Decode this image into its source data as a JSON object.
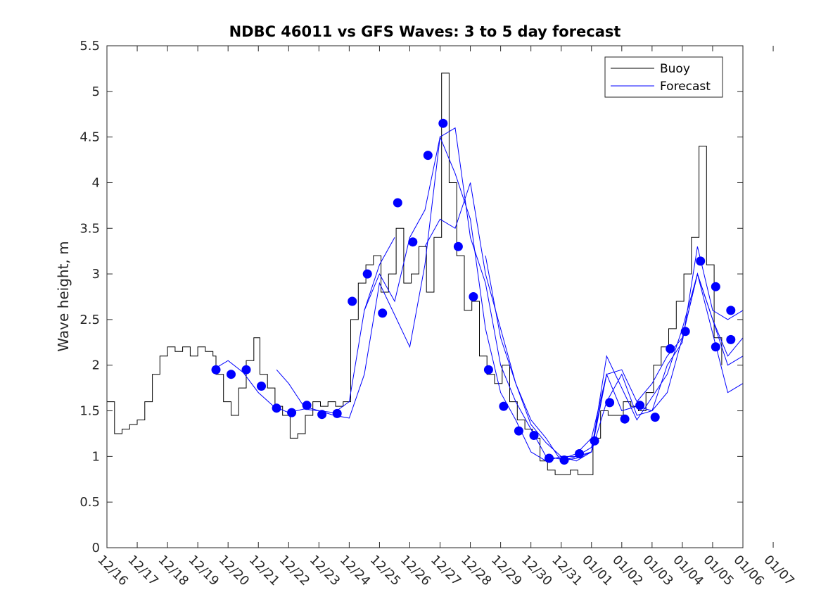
{
  "chart_data": {
    "type": "line",
    "title": "NDBC 46011 vs GFS Waves: 3 to 5 day forecast",
    "xlabel": "",
    "ylabel": "Wave height, m",
    "x_tick_labels": [
      "12/16",
      "12/17",
      "12/18",
      "12/19",
      "12/20",
      "12/21",
      "12/22",
      "12/23",
      "12/24",
      "12/25",
      "12/26",
      "12/27",
      "12/28",
      "12/29",
      "12/30",
      "12/31",
      "01/01",
      "01/02",
      "01/03",
      "01/04",
      "01/05",
      "01/06",
      "01/07"
    ],
    "xlim_days": [
      0,
      21
    ],
    "y_tick_labels": [
      "0",
      "0.5",
      "1",
      "1.5",
      "2",
      "2.5",
      "3",
      "3.5",
      "4",
      "4.5",
      "5",
      "5.5"
    ],
    "ylim": [
      0,
      5.5
    ],
    "grid": false,
    "legend": {
      "position": "top-right",
      "entries": [
        "Buoy",
        "Forecast"
      ]
    },
    "colors": {
      "buoy": "#000000",
      "forecast": "#0000ff",
      "markers": "#0000ff",
      "axes": "#262626"
    },
    "buoy": {
      "name": "Buoy",
      "x": [
        0.0,
        0.25,
        0.5,
        0.75,
        1.0,
        1.25,
        1.5,
        1.75,
        2.0,
        2.25,
        2.5,
        2.75,
        3.0,
        3.25,
        3.5,
        3.6,
        3.85,
        4.1,
        4.35,
        4.6,
        4.85,
        5.05,
        5.3,
        5.55,
        5.8,
        6.05,
        6.3,
        6.55,
        6.8,
        7.05,
        7.3,
        7.55,
        7.8,
        8.05,
        8.3,
        8.55,
        8.8,
        9.05,
        9.3,
        9.55,
        9.8,
        10.05,
        10.3,
        10.55,
        10.8,
        11.05,
        11.3,
        11.55,
        11.8,
        12.05,
        12.3,
        12.55,
        12.8,
        13.05,
        13.3,
        13.55,
        13.8,
        14.05,
        14.3,
        14.55,
        14.8,
        15.05,
        15.3,
        15.55,
        15.8,
        16.05,
        16.3,
        16.55,
        16.8,
        17.05,
        17.3,
        17.55,
        17.8,
        18.05,
        18.3,
        18.55,
        18.8,
        19.05,
        19.3,
        19.55,
        19.8,
        20.05,
        20.3
      ],
      "values": [
        1.6,
        1.25,
        1.3,
        1.35,
        1.4,
        1.6,
        1.9,
        2.1,
        2.2,
        2.15,
        2.2,
        2.1,
        2.2,
        2.15,
        2.1,
        1.9,
        1.6,
        1.45,
        1.75,
        2.05,
        2.3,
        1.9,
        1.75,
        1.55,
        1.45,
        1.2,
        1.25,
        1.45,
        1.6,
        1.55,
        1.6,
        1.55,
        1.6,
        2.5,
        2.9,
        3.1,
        3.2,
        2.8,
        3.0,
        3.5,
        2.9,
        3.0,
        3.3,
        2.8,
        3.4,
        5.2,
        4.0,
        3.2,
        2.6,
        2.7,
        2.1,
        1.9,
        1.8,
        2.0,
        1.6,
        1.4,
        1.3,
        1.2,
        0.95,
        0.85,
        0.8,
        0.8,
        0.85,
        0.8,
        0.8,
        1.2,
        1.5,
        1.45,
        1.45,
        1.6,
        1.55,
        1.5,
        1.7,
        2.0,
        2.2,
        2.4,
        2.7,
        3.0,
        3.4,
        4.4,
        3.1,
        2.3,
        2.0
      ]
    },
    "forecast": {
      "name": "Forecast",
      "series": [
        {
          "x": [
            3.6,
            4.0,
            4.5,
            5.0,
            5.5,
            6.0,
            6.5,
            7.0,
            7.5,
            8.0,
            8.5,
            9.0,
            9.5
          ],
          "values": [
            1.97,
            2.05,
            1.92,
            1.7,
            1.55,
            1.48,
            1.52,
            1.5,
            1.48,
            1.6,
            2.6,
            3.1,
            3.4
          ]
        },
        {
          "x": [
            5.6,
            6.0,
            6.5,
            7.0,
            7.5,
            8.0,
            8.5,
            9.0,
            9.5,
            10.0,
            10.5,
            11.0,
            11.5,
            12.0,
            12.5,
            13.0,
            13.5,
            14.0,
            14.5,
            15.0,
            15.5,
            16.0,
            16.5
          ],
          "values": [
            1.95,
            1.8,
            1.55,
            1.5,
            1.45,
            1.42,
            1.9,
            2.9,
            2.55,
            2.2,
            3.1,
            4.5,
            4.1,
            3.6,
            2.4,
            1.7,
            1.4,
            1.05,
            0.95,
            1.0,
            1.0,
            1.05,
            1.9
          ]
        },
        {
          "x": [
            8.5,
            9.0,
            9.5,
            10.0,
            10.5,
            11.0,
            11.5,
            12.0,
            12.5,
            13.0,
            13.5,
            14.0,
            14.5,
            15.0,
            15.5,
            16.0,
            16.5,
            17.0,
            17.5,
            18.0,
            18.5,
            19.0,
            19.5,
            20.0,
            20.5,
            21.0
          ],
          "values": [
            2.6,
            3.0,
            2.7,
            3.4,
            3.7,
            4.5,
            4.6,
            3.4,
            2.9,
            2.0,
            1.6,
            1.3,
            1.0,
            0.97,
            1.03,
            1.2,
            1.9,
            1.95,
            1.6,
            1.8,
            2.1,
            2.3,
            3.0,
            2.5,
            2.0,
            2.1
          ]
        },
        {
          "x": [
            10.5,
            11.0,
            11.5,
            12.0,
            12.5,
            13.0,
            13.5,
            14.0,
            14.5,
            15.0,
            15.5,
            16.0,
            16.5,
            17.0,
            17.5,
            18.0,
            18.5,
            19.0,
            19.5,
            20.0,
            20.5,
            21.0
          ],
          "values": [
            3.3,
            3.6,
            3.5,
            4.0,
            3.0,
            2.4,
            1.8,
            1.4,
            1.2,
            0.95,
            0.98,
            1.05,
            1.6,
            1.9,
            1.45,
            1.5,
            2.0,
            2.25,
            3.3,
            2.6,
            2.5,
            2.6
          ]
        },
        {
          "x": [
            12.5,
            13.0,
            13.5,
            14.0,
            14.5,
            15.0,
            15.5,
            16.0,
            16.5,
            17.0,
            17.5,
            18.0,
            18.5,
            19.0,
            19.5,
            20.0,
            20.5,
            21.0
          ],
          "values": [
            3.2,
            2.3,
            1.8,
            1.35,
            1.15,
            1.0,
            0.95,
            1.05,
            2.1,
            1.75,
            1.4,
            1.65,
            1.9,
            2.4,
            3.0,
            2.35,
            1.7,
            1.8
          ]
        },
        {
          "x": [
            15.0,
            15.5,
            16.0,
            16.5,
            17.0,
            17.5,
            18.0,
            18.5,
            19.0,
            19.5,
            20.0,
            20.5,
            21.0
          ],
          "values": [
            0.95,
            1.0,
            1.1,
            1.9,
            1.5,
            1.55,
            1.5,
            1.7,
            2.3,
            3.0,
            2.5,
            2.1,
            2.3
          ]
        }
      ]
    },
    "markers": {
      "x": [
        3.6,
        4.1,
        4.6,
        5.1,
        5.6,
        6.1,
        6.6,
        7.1,
        7.6,
        8.1,
        8.6,
        9.1,
        9.6,
        10.1,
        10.6,
        11.1,
        11.6,
        12.1,
        12.6,
        13.1,
        13.6,
        14.1,
        14.6,
        15.1,
        15.6,
        16.1,
        16.6,
        17.1,
        17.6,
        18.1,
        18.6,
        19.1,
        19.6,
        20.1,
        20.6
      ],
      "values": [
        1.95,
        1.9,
        1.95,
        1.77,
        1.53,
        1.48,
        1.56,
        1.46,
        1.47,
        2.7,
        3.0,
        2.57,
        3.78,
        3.35,
        4.3,
        4.65,
        3.3,
        2.75,
        1.95,
        1.55,
        1.28,
        1.23,
        0.98,
        0.96,
        1.03,
        1.17,
        1.59,
        1.41,
        1.56,
        1.43,
        2.18,
        2.37,
        3.14,
        2.86,
        2.28
      ]
    },
    "markers_extra": {
      "x": [
        20.1,
        20.6
      ],
      "values": [
        2.2,
        2.6
      ]
    }
  }
}
